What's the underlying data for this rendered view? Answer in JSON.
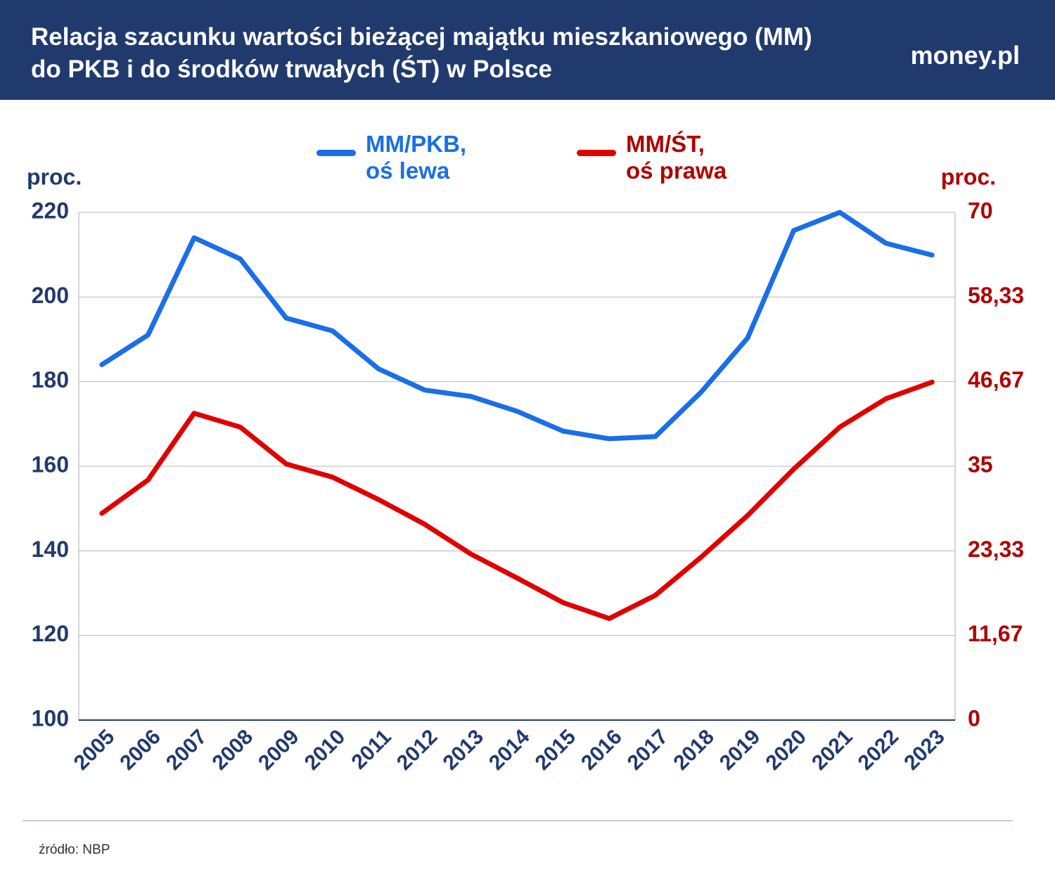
{
  "header": {
    "title": "Relacja szacunku wartości bieżącej majątku mieszkaniowego (MM) do PKB i do środków trwałych (ŚT) w Polsce",
    "logo": "money.pl"
  },
  "chart_data": {
    "type": "line",
    "y_label": "proc.",
    "y2_label": "proc.",
    "categories": [
      "2005",
      "2006",
      "2007",
      "2008",
      "2009",
      "2010",
      "2011",
      "2012",
      "2013",
      "2014",
      "2015",
      "2016",
      "2017",
      "2018",
      "2019",
      "2020",
      "2021",
      "2022",
      "2023"
    ],
    "series": [
      {
        "name": "MM/PKB,\noś lewa",
        "color": "#1a6ee8",
        "values": [
          184,
          191,
          214,
          209,
          195,
          192,
          183,
          178,
          176.5,
          173,
          168.3,
          166.5,
          167,
          177.6,
          190.3,
          215.7,
          220,
          212.7,
          209.9
        ]
      },
      {
        "name": "MM/ŚT,\noś prawa",
        "color": "#e00000",
        "axis": "y2",
        "values": [
          28.5,
          33.1,
          42.3,
          40.4,
          35.3,
          33.5,
          30.4,
          27,
          22.9,
          19.6,
          16.2,
          14,
          17.2,
          22.5,
          28.2,
          34.6,
          40.4,
          44.3,
          46.6
        ]
      }
    ],
    "ylim": [
      100,
      220
    ],
    "yticks": [
      100,
      120,
      140,
      160,
      180,
      200,
      220
    ],
    "y2lim": [
      0,
      70
    ],
    "y2ticks": [
      0,
      {
        "value": 11.67,
        "label": "11,67"
      },
      {
        "value": 23.33,
        "label": "23,33"
      },
      35,
      {
        "value": 46.67,
        "label": "46,67"
      },
      {
        "value": 58.33,
        "label": "58,33"
      },
      70
    ],
    "grid": true
  },
  "source": "źródło: NBP"
}
